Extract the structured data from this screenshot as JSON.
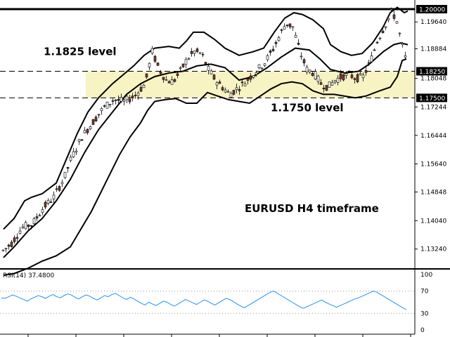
{
  "chart_data": [
    {
      "type": "candlestick",
      "symbol_label": "EURUSD H4 timeframe",
      "ylim": [
        1.127,
        1.201
      ],
      "y_ticks": [
        "1.19640",
        "1.18884",
        "1.18250",
        "1.18048",
        "1.17500",
        "1.17244",
        "1.16444",
        "1.15640",
        "1.14848",
        "1.14040",
        "1.13240"
      ],
      "top_label": "1.20000",
      "levels": [
        {
          "value": 1.2,
          "label": "1.20000",
          "style": "solid"
        },
        {
          "value": 1.1825,
          "label": "1.18250",
          "style": "dashed"
        },
        {
          "value": 1.175,
          "label": "1.17500",
          "style": "dashed"
        }
      ],
      "zone": {
        "from": 1.175,
        "to": 1.1825,
        "color": "#f7f3c3"
      },
      "annotations": [
        {
          "text": "1.1825 level",
          "at": 1.188
        },
        {
          "text": "1.1750 level",
          "at": 1.1722
        }
      ],
      "overlay": "Bollinger Bands",
      "path": [
        [
          0,
          1.1315
        ],
        [
          15,
          1.134
        ],
        [
          30,
          1.1385
        ],
        [
          45,
          1.1395
        ],
        [
          60,
          1.144
        ],
        [
          75,
          1.147
        ],
        [
          90,
          1.1525
        ],
        [
          100,
          1.158
        ],
        [
          115,
          1.164
        ],
        [
          130,
          1.168
        ],
        [
          145,
          1.172
        ],
        [
          160,
          1.1745
        ],
        [
          175,
          1.174
        ],
        [
          190,
          1.1755
        ],
        [
          205,
          1.179
        ],
        [
          215,
          1.188
        ],
        [
          225,
          1.183
        ],
        [
          235,
          1.18
        ],
        [
          245,
          1.1795
        ],
        [
          255,
          1.1825
        ],
        [
          265,
          1.186
        ],
        [
          275,
          1.188
        ],
        [
          285,
          1.1875
        ],
        [
          295,
          1.183
        ],
        [
          305,
          1.18
        ],
        [
          315,
          1.178
        ],
        [
          325,
          1.176
        ],
        [
          335,
          1.1775
        ],
        [
          345,
          1.179
        ],
        [
          355,
          1.181
        ],
        [
          365,
          1.183
        ],
        [
          375,
          1.185
        ],
        [
          385,
          1.188
        ],
        [
          395,
          1.192
        ],
        [
          405,
          1.196
        ],
        [
          415,
          1.195
        ],
        [
          425,
          1.188
        ],
        [
          435,
          1.183
        ],
        [
          445,
          1.182
        ],
        [
          455,
          1.179
        ],
        [
          465,
          1.178
        ],
        [
          475,
          1.18
        ],
        [
          485,
          1.181
        ],
        [
          495,
          1.1815
        ],
        [
          505,
          1.1805
        ],
        [
          515,
          1.181
        ],
        [
          525,
          1.185
        ],
        [
          535,
          1.191
        ],
        [
          545,
          1.195
        ],
        [
          555,
          1.199
        ],
        [
          562,
          1.1975
        ],
        [
          568,
          1.192
        ],
        [
          574,
          1.187
        ],
        [
          580,
          1.183
        ]
      ],
      "bands_upper": [
        [
          5,
          1.138
        ],
        [
          20,
          1.141
        ],
        [
          35,
          1.146
        ],
        [
          45,
          1.147
        ],
        [
          60,
          1.148
        ],
        [
          80,
          1.151
        ],
        [
          95,
          1.158
        ],
        [
          110,
          1.165
        ],
        [
          125,
          1.171
        ],
        [
          140,
          1.175
        ],
        [
          160,
          1.179
        ],
        [
          175,
          1.1815
        ],
        [
          190,
          1.184
        ],
        [
          205,
          1.187
        ],
        [
          220,
          1.189
        ],
        [
          240,
          1.1895
        ],
        [
          255,
          1.189
        ],
        [
          265,
          1.191
        ],
        [
          275,
          1.1935
        ],
        [
          290,
          1.1935
        ],
        [
          305,
          1.1915
        ],
        [
          320,
          1.189
        ],
        [
          340,
          1.187
        ],
        [
          360,
          1.188
        ],
        [
          375,
          1.189
        ],
        [
          390,
          1.1935
        ],
        [
          405,
          1.1975
        ],
        [
          418,
          1.199
        ],
        [
          430,
          1.1985
        ],
        [
          445,
          1.197
        ],
        [
          460,
          1.1945
        ],
        [
          470,
          1.19
        ],
        [
          485,
          1.188
        ],
        [
          500,
          1.187
        ],
        [
          515,
          1.1875
        ],
        [
          530,
          1.1905
        ],
        [
          545,
          1.195
        ],
        [
          555,
          1.199
        ],
        [
          565,
          1.2005
        ],
        [
          575,
          1.199
        ],
        [
          580,
          1.1995
        ]
      ],
      "bands_middle": [
        [
          5,
          1.13
        ],
        [
          20,
          1.133
        ],
        [
          40,
          1.1375
        ],
        [
          60,
          1.141
        ],
        [
          80,
          1.146
        ],
        [
          100,
          1.152
        ],
        [
          120,
          1.1595
        ],
        [
          140,
          1.166
        ],
        [
          160,
          1.171
        ],
        [
          180,
          1.176
        ],
        [
          200,
          1.179
        ],
        [
          220,
          1.181
        ],
        [
          240,
          1.182
        ],
        [
          260,
          1.1825
        ],
        [
          280,
          1.184
        ],
        [
          300,
          1.1845
        ],
        [
          320,
          1.1835
        ],
        [
          340,
          1.18
        ],
        [
          360,
          1.181
        ],
        [
          380,
          1.1835
        ],
        [
          400,
          1.1865
        ],
        [
          420,
          1.189
        ],
        [
          440,
          1.1885
        ],
        [
          455,
          1.186
        ],
        [
          470,
          1.183
        ],
        [
          490,
          1.182
        ],
        [
          510,
          1.1825
        ],
        [
          525,
          1.1845
        ],
        [
          545,
          1.188
        ],
        [
          560,
          1.19
        ],
        [
          570,
          1.1905
        ],
        [
          580,
          1.19
        ]
      ],
      "bands_lower": [
        [
          5,
          1.125
        ],
        [
          20,
          1.1255
        ],
        [
          40,
          1.127
        ],
        [
          60,
          1.129
        ],
        [
          80,
          1.1305
        ],
        [
          100,
          1.133
        ],
        [
          115,
          1.138
        ],
        [
          130,
          1.143
        ],
        [
          150,
          1.151
        ],
        [
          170,
          1.159
        ],
        [
          185,
          1.164
        ],
        [
          200,
          1.168
        ],
        [
          210,
          1.1715
        ],
        [
          220,
          1.174
        ],
        [
          235,
          1.1745
        ],
        [
          250,
          1.1748
        ],
        [
          265,
          1.1735
        ],
        [
          280,
          1.1735
        ],
        [
          295,
          1.1765
        ],
        [
          310,
          1.1755
        ],
        [
          325,
          1.1745
        ],
        [
          340,
          1.174
        ],
        [
          355,
          1.1735
        ],
        [
          370,
          1.1755
        ],
        [
          385,
          1.1775
        ],
        [
          400,
          1.179
        ],
        [
          415,
          1.1795
        ],
        [
          430,
          1.179
        ],
        [
          445,
          1.177
        ],
        [
          460,
          1.176
        ],
        [
          475,
          1.176
        ],
        [
          490,
          1.1755
        ],
        [
          505,
          1.175
        ],
        [
          520,
          1.1755
        ],
        [
          540,
          1.177
        ],
        [
          555,
          1.178
        ],
        [
          565,
          1.181
        ],
        [
          572,
          1.1855
        ],
        [
          578,
          1.186
        ]
      ]
    },
    {
      "type": "line",
      "title": "RSI(14) 37.4800",
      "ylim": [
        0,
        100
      ],
      "y_ticks": [
        "100",
        "70",
        "30",
        "0"
      ],
      "levels": [
        70,
        30
      ],
      "line_color": "#1e90ff",
      "series": [
        {
          "values": [
            58,
            57,
            60,
            63,
            61,
            58,
            55,
            52,
            56,
            59,
            62,
            60,
            57,
            61,
            64,
            60,
            58,
            62,
            65,
            63,
            59,
            56,
            60,
            63,
            61,
            57,
            54,
            58,
            62,
            60,
            64,
            66,
            62,
            58,
            55,
            59,
            56,
            52,
            48,
            45,
            50,
            47,
            44,
            48,
            52,
            50,
            46,
            43,
            47,
            51,
            55,
            52,
            49,
            46,
            50,
            54,
            52,
            48,
            45,
            49,
            53,
            57,
            55,
            51,
            47,
            43,
            40,
            44,
            48,
            52,
            56,
            60,
            64,
            68,
            70,
            66,
            62,
            58,
            54,
            50,
            46,
            42,
            39,
            42,
            45,
            48,
            51,
            54,
            50,
            47,
            44,
            41,
            44,
            47,
            50,
            53,
            56,
            58,
            61,
            64,
            67,
            70,
            68,
            64,
            60,
            56,
            52,
            48,
            44,
            40,
            37
          ]
        }
      ]
    }
  ]
}
